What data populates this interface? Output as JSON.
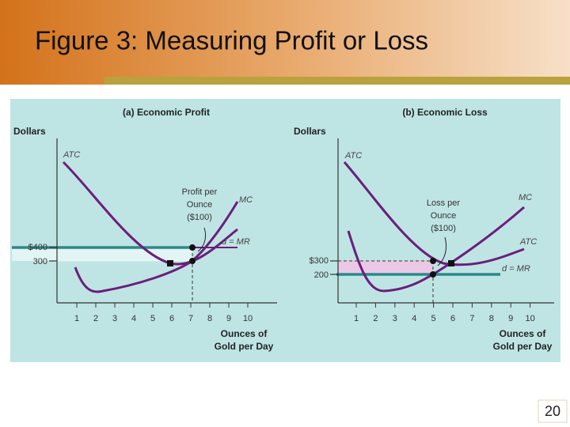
{
  "slide": {
    "title": "Figure 3:  Measuring Profit or Loss",
    "page_number": "20"
  },
  "panels": [
    {
      "title": "(a) Economic Profit",
      "y_axis_label": "Dollars",
      "x_axis_label": [
        "Ounces of",
        "Gold per Day"
      ],
      "x_tick_labels": [
        "1",
        "2",
        "3",
        "4",
        "5",
        "6",
        "7",
        "8",
        "9",
        "10"
      ],
      "price_labels": [
        "$400",
        "300"
      ],
      "curve_labels": {
        "atc": "ATC",
        "mc": "MC",
        "mr": "d = MR"
      },
      "annotation": [
        "Profit per",
        "Ounce",
        "($100)"
      ]
    },
    {
      "title": "(b) Economic Loss",
      "y_axis_label": "Dollars",
      "x_axis_label": [
        "Ounces of",
        "Gold per Day"
      ],
      "x_tick_labels": [
        "1",
        "2",
        "3",
        "4",
        "5",
        "6",
        "7",
        "8",
        "9",
        "10"
      ],
      "price_labels": [
        "$300",
        "200"
      ],
      "curve_labels": {
        "atc": "ATC",
        "mc": "MC",
        "mr": "d = MR"
      },
      "annotation": [
        "Loss per",
        "Ounce",
        "($100)"
      ]
    }
  ]
}
